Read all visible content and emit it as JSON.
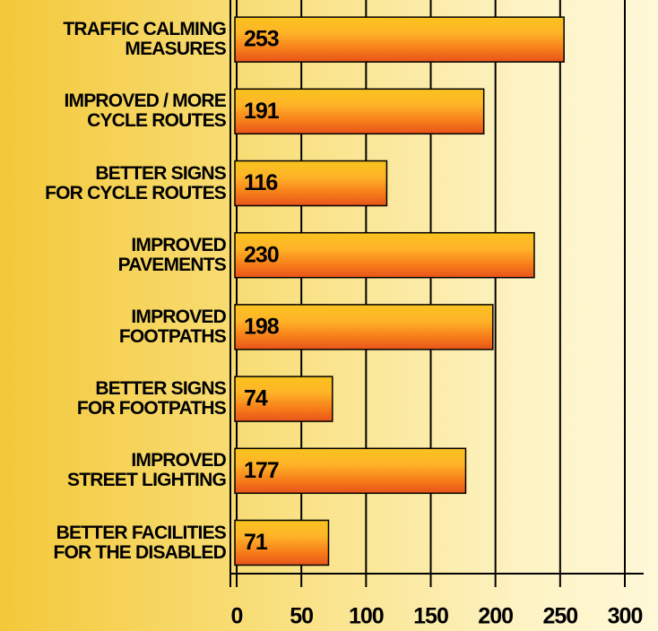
{
  "chart_data": {
    "type": "bar",
    "orientation": "horizontal",
    "categories": [
      "TRAFFIC CALMING\nMEASURES",
      "IMPROVED / MORE\nCYCLE ROUTES",
      "BETTER SIGNS\nFOR CYCLE ROUTES",
      "IMPROVED\nPAVEMENTS",
      "IMPROVED\nFOOTPATHS",
      "BETTER SIGNS\nFOR FOOTPATHS",
      "IMPROVED\nSTREET LIGHTING",
      "BETTER FACILITIES\nFOR THE DISABLED"
    ],
    "values": [
      253,
      191,
      116,
      230,
      198,
      74,
      177,
      71
    ],
    "color": "#f77f1a",
    "xlim": [
      0,
      300
    ],
    "xticks": [
      0,
      50,
      100,
      150,
      200,
      250,
      300
    ],
    "grid": true
  }
}
